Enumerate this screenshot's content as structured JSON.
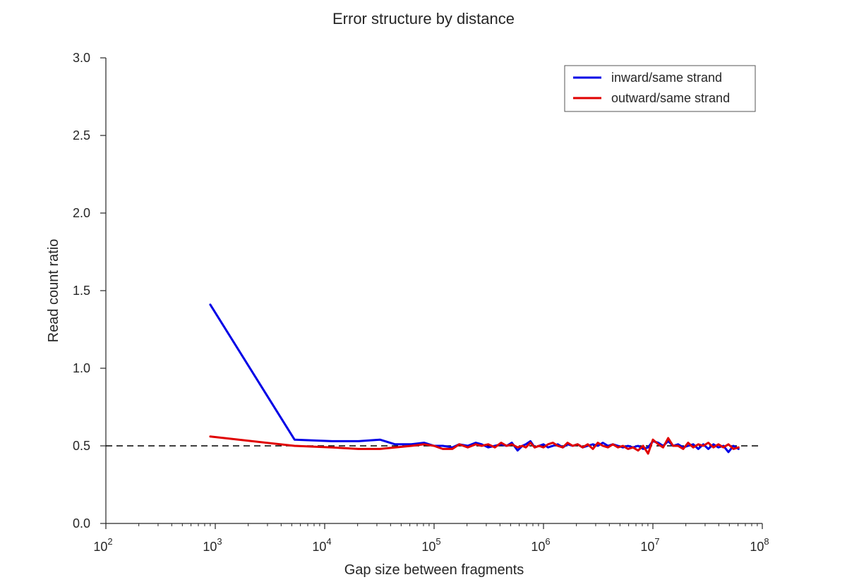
{
  "chart_data": {
    "type": "line",
    "title": "Error structure by distance",
    "xlabel": "Gap size between fragments",
    "ylabel": "Read count ratio",
    "xscale": "log",
    "xlim": [
      100,
      100000000
    ],
    "ylim": [
      0.0,
      3.0
    ],
    "yticks": [
      "0.0",
      "0.5",
      "1.0",
      "1.5",
      "2.0",
      "2.5",
      "3.0"
    ],
    "xticks": [
      {
        "base": "10",
        "exp": "2"
      },
      {
        "base": "10",
        "exp": "3"
      },
      {
        "base": "10",
        "exp": "4"
      },
      {
        "base": "10",
        "exp": "5"
      },
      {
        "base": "10",
        "exp": "6"
      },
      {
        "base": "10",
        "exp": "7"
      },
      {
        "base": "10",
        "exp": "8"
      }
    ],
    "grid": false,
    "legend_position": "top-right",
    "reference_line": {
      "y": 0.5,
      "style": "dashed",
      "color": "#000000"
    },
    "series": [
      {
        "name": "inward/same strand",
        "color": "#0000e6",
        "x": [
          900,
          5300,
          11700,
          20300,
          32000,
          44000,
          62000,
          81000,
          100000,
          120000,
          147000,
          170000,
          203000,
          240000,
          272000,
          312000,
          360000,
          410000,
          460000,
          514000,
          580000,
          640000,
          690000,
          760000,
          830000,
          910000,
          1000000,
          1100000,
          1220000,
          1350000,
          1500000,
          1660000,
          1850000,
          2050000,
          2280000,
          2540000,
          2830000,
          3140000,
          3490000,
          3880000,
          4310000,
          4790000,
          5330000,
          5920000,
          6580000,
          7320000,
          8130000,
          9040000,
          10000000,
          11200000,
          12400000,
          13800000,
          15300000,
          17000000,
          18900000,
          21000000,
          23400000,
          26000000,
          28900000,
          32100000,
          35700000,
          39700000,
          44100000,
          49000000,
          54500000,
          60600000
        ],
        "values": [
          1.41,
          0.54,
          0.53,
          0.53,
          0.54,
          0.51,
          0.51,
          0.52,
          0.5,
          0.5,
          0.49,
          0.51,
          0.5,
          0.52,
          0.51,
          0.49,
          0.5,
          0.51,
          0.5,
          0.52,
          0.47,
          0.5,
          0.51,
          0.53,
          0.49,
          0.5,
          0.51,
          0.49,
          0.5,
          0.51,
          0.49,
          0.51,
          0.5,
          0.51,
          0.49,
          0.5,
          0.51,
          0.5,
          0.52,
          0.5,
          0.51,
          0.5,
          0.49,
          0.5,
          0.49,
          0.5,
          0.48,
          0.49,
          0.53,
          0.52,
          0.5,
          0.53,
          0.5,
          0.51,
          0.49,
          0.5,
          0.51,
          0.48,
          0.51,
          0.48,
          0.51,
          0.49,
          0.5,
          0.46,
          0.5,
          0.48
        ]
      },
      {
        "name": "outward/same strand",
        "color": "#e00000",
        "x": [
          900,
          5300,
          11700,
          20300,
          32000,
          44000,
          62000,
          81000,
          100000,
          120000,
          147000,
          170000,
          203000,
          240000,
          272000,
          312000,
          360000,
          410000,
          460000,
          514000,
          580000,
          640000,
          690000,
          760000,
          830000,
          910000,
          1000000,
          1100000,
          1220000,
          1350000,
          1500000,
          1660000,
          1850000,
          2050000,
          2280000,
          2540000,
          2830000,
          3140000,
          3490000,
          3880000,
          4310000,
          4790000,
          5330000,
          5920000,
          6580000,
          7320000,
          8130000,
          9040000,
          10000000,
          11200000,
          12400000,
          13800000,
          15300000,
          17000000,
          18900000,
          21000000,
          23400000,
          26000000,
          28900000,
          32100000,
          35700000,
          39700000,
          44100000,
          49000000,
          54500000,
          60600000
        ],
        "values": [
          0.56,
          0.5,
          0.49,
          0.48,
          0.48,
          0.49,
          0.5,
          0.51,
          0.5,
          0.48,
          0.48,
          0.51,
          0.49,
          0.51,
          0.5,
          0.51,
          0.49,
          0.52,
          0.5,
          0.51,
          0.49,
          0.5,
          0.49,
          0.52,
          0.49,
          0.5,
          0.49,
          0.51,
          0.52,
          0.5,
          0.49,
          0.52,
          0.5,
          0.51,
          0.49,
          0.51,
          0.48,
          0.52,
          0.5,
          0.49,
          0.51,
          0.49,
          0.5,
          0.48,
          0.49,
          0.47,
          0.5,
          0.45,
          0.54,
          0.51,
          0.49,
          0.55,
          0.5,
          0.5,
          0.48,
          0.52,
          0.49,
          0.51,
          0.5,
          0.52,
          0.49,
          0.51,
          0.49,
          0.51,
          0.48,
          0.49
        ]
      }
    ]
  }
}
